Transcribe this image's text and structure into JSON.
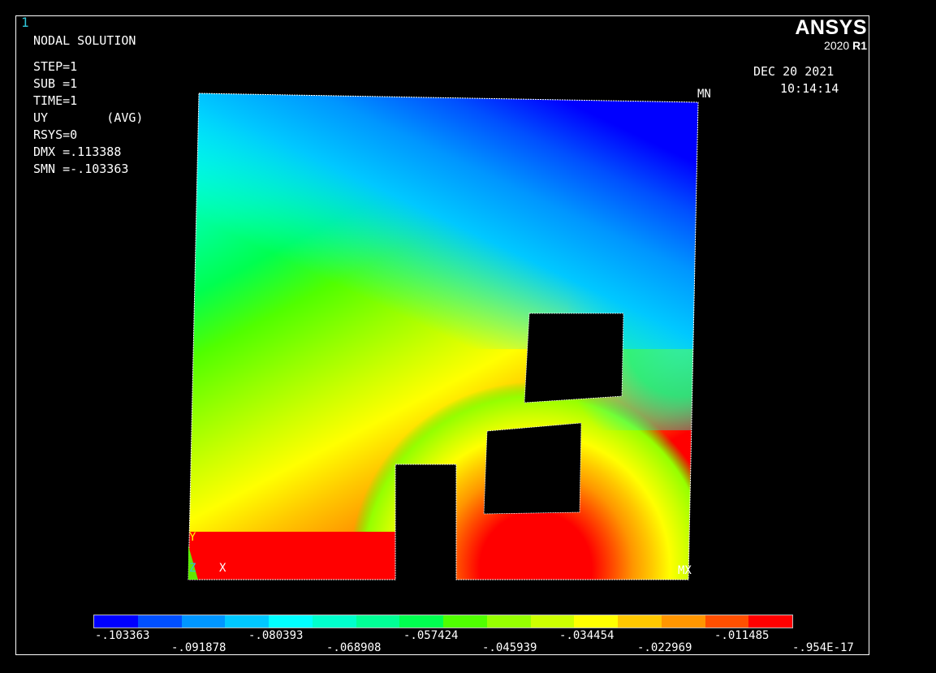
{
  "window_number": "1",
  "header": {
    "title": "NODAL SOLUTION",
    "info_lines": [
      "STEP=1",
      "SUB =1",
      "TIME=1",
      "UY        (AVG)",
      "RSYS=0",
      "DMX =.113388",
      "SMN =-.103363"
    ]
  },
  "brand": {
    "name": "ANSYS",
    "version": "2020",
    "release": "R1"
  },
  "datetime": {
    "date": "DEC 20 2021",
    "time": "10:14:14"
  },
  "markers": {
    "min": "MN",
    "max": "MX"
  },
  "triad": {
    "y": "Y",
    "z": "Z",
    "x": "X"
  },
  "legend": {
    "colors": [
      "#0000ff",
      "#0050ff",
      "#0096ff",
      "#00c8ff",
      "#00ffff",
      "#00ffcc",
      "#00ff96",
      "#00ff50",
      "#50ff00",
      "#96ff00",
      "#ccff00",
      "#ffff00",
      "#ffc800",
      "#ff9600",
      "#ff5000",
      "#ff0000"
    ],
    "top_labels": [
      "-.103363",
      "-.080393",
      "-.057424",
      "-.034454",
      "-.011485"
    ],
    "bottom_labels": [
      "-.091878",
      "-.068908",
      "-.045939",
      "-.022969",
      "-.954E-17"
    ]
  }
}
